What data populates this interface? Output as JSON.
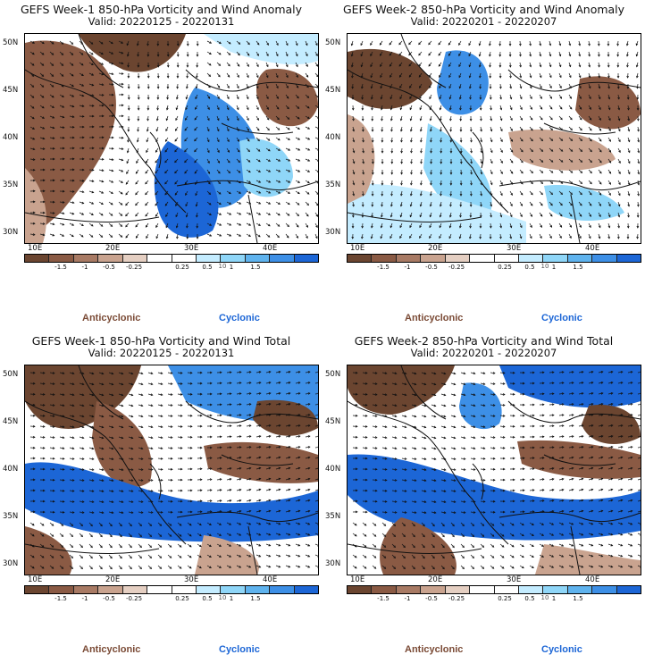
{
  "panels": [
    {
      "title": "GEFS Week-1 850-hPa Vorticity and Wind Anomaly",
      "valid": "Valid: 20220125 - 20220131"
    },
    {
      "title": "GEFS Week-2 850-hPa Vorticity and Wind Anomaly",
      "valid": "Valid: 20220201 - 20220207"
    },
    {
      "title": "GEFS Week-1 850-hPa Vorticity and Wind Total",
      "valid": "Valid: 20220125 - 20220131"
    },
    {
      "title": "GEFS Week-2 850-hPa Vorticity and Wind Total",
      "valid": "Valid: 20220201 - 20220207"
    }
  ],
  "lat_labels": [
    "50N",
    "45N",
    "40N",
    "35N",
    "30N"
  ],
  "lon_labels": [
    "10E",
    "20E",
    "30E",
    "40E"
  ],
  "colorbar": {
    "tick_labels": [
      "-1.5",
      "-1",
      "-0.5",
      "-0.25",
      "0.25",
      "0.5",
      "1",
      "1.5"
    ],
    "unit_marker": "10",
    "colors": [
      "#6b4530",
      "#8a5a44",
      "#a87a64",
      "#c9a38f",
      "#e5cfc2",
      "#ffffff",
      "#ffffff",
      "#c4ecff",
      "#8fd6f8",
      "#5fb3ee",
      "#3d8fe6",
      "#1c66d6"
    ]
  },
  "legend": {
    "anticyclonic": "Anticyclonic",
    "cyclonic": "Cyclonic"
  }
}
